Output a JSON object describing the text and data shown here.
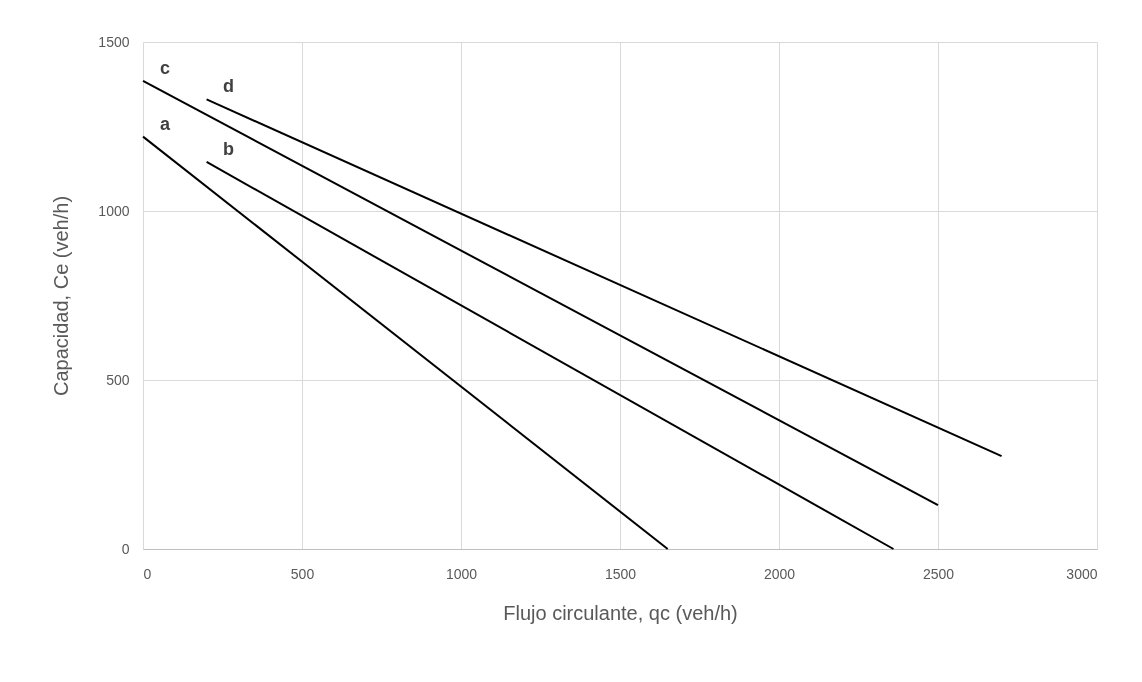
{
  "chart_data": {
    "type": "line",
    "xlabel": "Flujo circulante, qc (veh/h)",
    "ylabel": "Capacidad, Ce (veh/h)",
    "xlim": [
      0,
      3000
    ],
    "xticks": [
      0,
      500,
      1000,
      1500,
      2000,
      2500,
      3000
    ],
    "ylim": [
      0,
      1500
    ],
    "yticks": [
      0,
      500,
      1000,
      1500
    ],
    "grid": true,
    "series": [
      {
        "name": "a",
        "color": "#000000",
        "x": [
          0,
          1650
        ],
        "values": [
          1220,
          0
        ]
      },
      {
        "name": "b",
        "color": "#000000",
        "x": [
          200,
          2360
        ],
        "values": [
          1145,
          0
        ]
      },
      {
        "name": "c",
        "color": "#000000",
        "x": [
          0,
          2500
        ],
        "values": [
          1385,
          130
        ]
      },
      {
        "name": "d",
        "color": "#000000",
        "x": [
          200,
          2700
        ],
        "values": [
          1330,
          275
        ]
      }
    ]
  }
}
